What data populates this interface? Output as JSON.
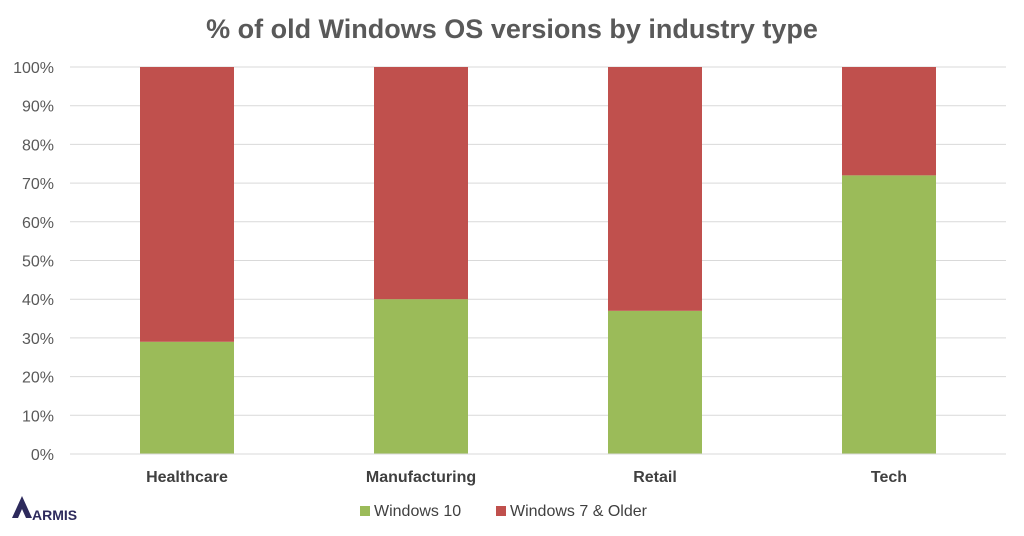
{
  "chart_data": {
    "type": "bar",
    "stacked": true,
    "title": "% of old Windows OS versions by industry type",
    "categories": [
      "Healthcare",
      "Manufacturing",
      "Retail",
      "Tech"
    ],
    "series": [
      {
        "name": "Windows 10",
        "color": "#9bbb59",
        "values": [
          29,
          40,
          37,
          72
        ]
      },
      {
        "name": "Windows 7 & Older",
        "color": "#c0504d",
        "values": [
          71,
          60,
          63,
          28
        ]
      }
    ],
    "ylim": [
      0,
      100
    ],
    "yticks": [
      "0%",
      "10%",
      "20%",
      "30%",
      "40%",
      "50%",
      "60%",
      "70%",
      "80%",
      "90%",
      "100%"
    ],
    "grid": true,
    "legend_position": "bottom"
  },
  "logo": {
    "text": "ARMIS",
    "color": "#2d2a5c"
  }
}
